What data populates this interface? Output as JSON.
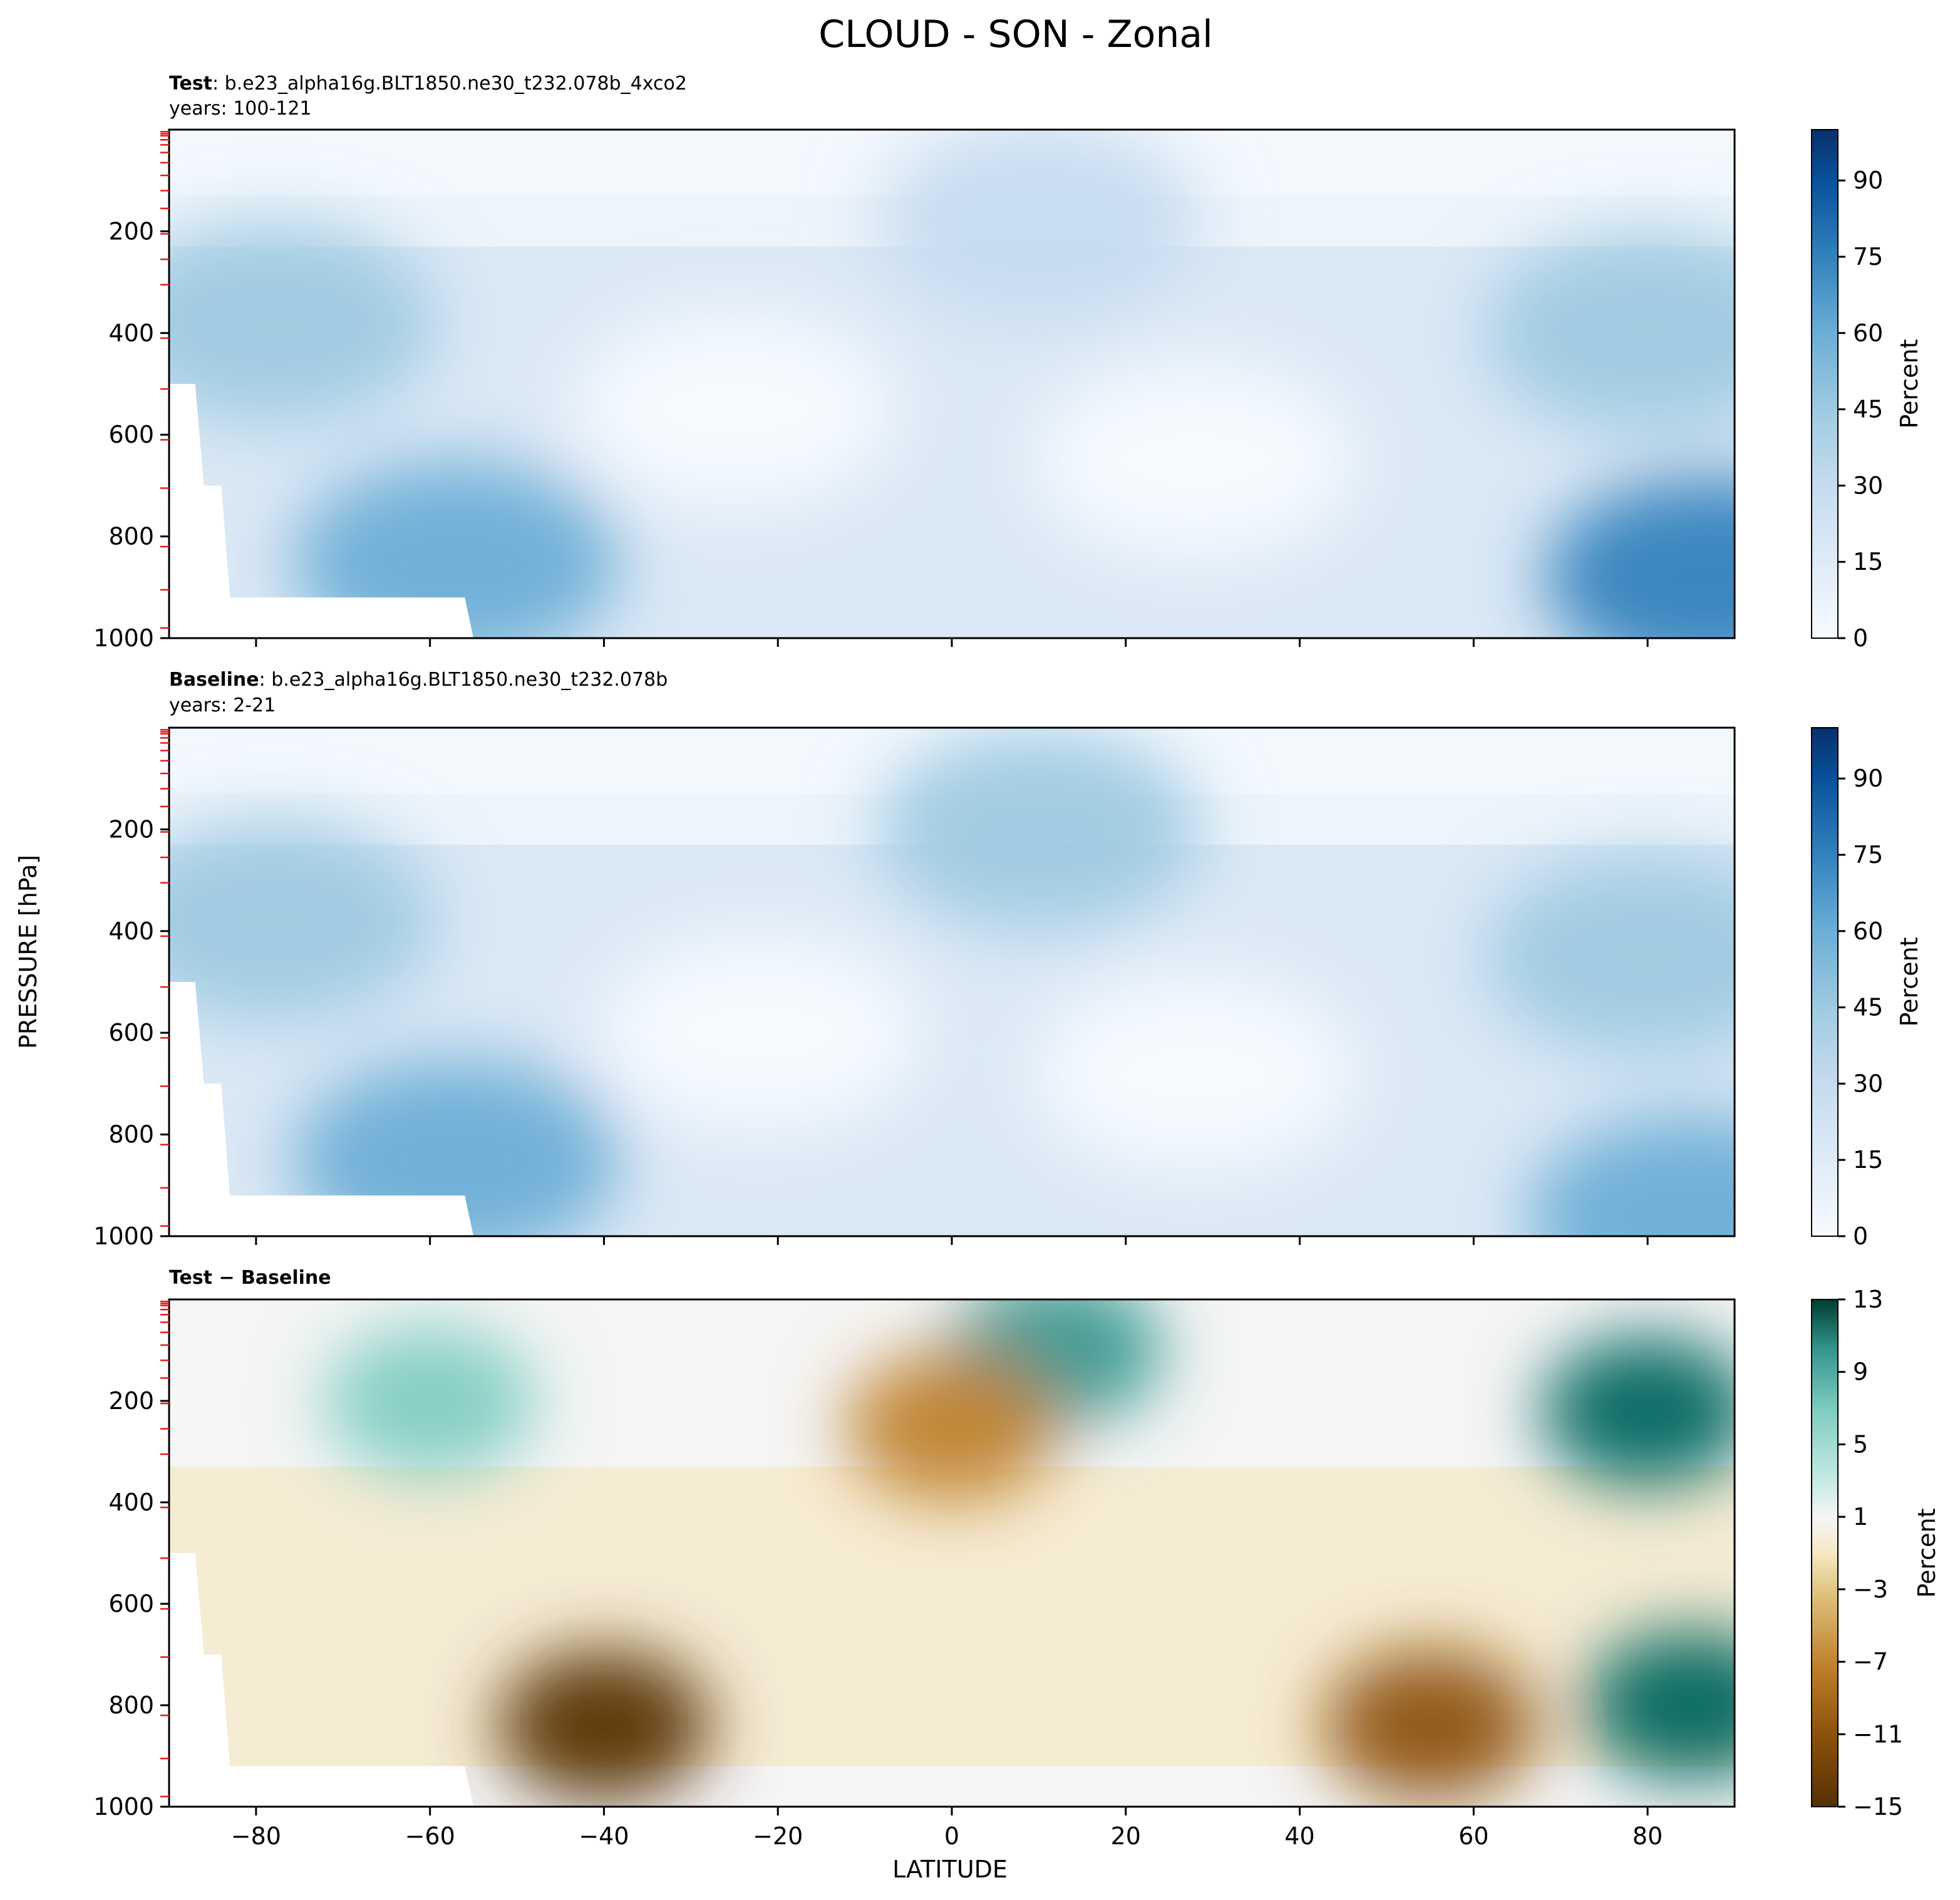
{
  "page": {
    "title": "CLOUD - SON - Zonal"
  },
  "chart_data": [
    {
      "type": "contour",
      "panel": "test",
      "title_bold": "Test",
      "title_rest": ": b.e23_alpha16g.BLT1850.ne30_t232.078b_4xco2",
      "years": "years: 100-121",
      "ylabel": "PRESSURE [hPa]",
      "xlim": [
        -90,
        90
      ],
      "ylim": [
        1000,
        0
      ],
      "yticks": [
        200,
        400,
        600,
        800,
        1000
      ],
      "colorbar": {
        "label": "Percent",
        "ticks": [
          0,
          15,
          30,
          45,
          60,
          75,
          90
        ],
        "range": [
          0,
          100
        ],
        "cmap": "Blues"
      },
      "blobs": [
        {
          "name": "sh-lowcloud-max",
          "lat": -57,
          "p": 850,
          "value": 60
        },
        {
          "name": "nh-lowcloud-max",
          "lat": 87,
          "p": 880,
          "value": 65
        },
        {
          "name": "tropical-cirrus",
          "lat": 10,
          "p": 180,
          "value": 35
        },
        {
          "name": "sh-midlevel",
          "lat": -78,
          "p": 380,
          "value": 45
        },
        {
          "name": "nh-midlevel",
          "lat": 80,
          "p": 400,
          "value": 45
        },
        {
          "name": "subtropical-min-s",
          "lat": -25,
          "p": 550,
          "value": 3
        },
        {
          "name": "subtropical-min-n",
          "lat": 28,
          "p": 650,
          "value": 3
        }
      ]
    },
    {
      "type": "contour",
      "panel": "baseline",
      "title_bold": "Baseline",
      "title_rest": ": b.e23_alpha16g.BLT1850.ne30_t232.078b",
      "years": "years: 2-21",
      "xlim": [
        -90,
        90
      ],
      "ylim": [
        1000,
        0
      ],
      "yticks": [
        200,
        400,
        600,
        800,
        1000
      ],
      "colorbar": {
        "label": "Percent",
        "ticks": [
          0,
          15,
          30,
          45,
          60,
          75,
          90
        ],
        "range": [
          0,
          100
        ],
        "cmap": "Blues"
      },
      "blobs": [
        {
          "name": "sh-lowcloud-max",
          "lat": -57,
          "p": 850,
          "value": 62
        },
        {
          "name": "nh-lowcloud-max",
          "lat": 85,
          "p": 960,
          "value": 60
        },
        {
          "name": "tropical-cirrus",
          "lat": 10,
          "p": 200,
          "value": 38
        },
        {
          "name": "sh-midlevel",
          "lat": -78,
          "p": 380,
          "value": 45
        },
        {
          "name": "nh-midlevel",
          "lat": 80,
          "p": 450,
          "value": 42
        },
        {
          "name": "subtropical-min-s",
          "lat": -22,
          "p": 600,
          "value": 3
        },
        {
          "name": "subtropical-min-n",
          "lat": 28,
          "p": 680,
          "value": 3
        }
      ]
    },
    {
      "type": "contour",
      "panel": "difference",
      "title_bold": "Test − Baseline",
      "xlabel": "LATITUDE",
      "xlim": [
        -90,
        90
      ],
      "xticks": [
        -80,
        -60,
        -40,
        -20,
        0,
        20,
        40,
        60,
        80
      ],
      "ylim": [
        1000,
        0
      ],
      "yticks": [
        200,
        400,
        600,
        800,
        1000
      ],
      "colorbar": {
        "label": "Percent",
        "ticks": [
          -15,
          -11,
          -7,
          -3,
          1,
          5,
          9,
          13
        ],
        "range": [
          -15,
          13
        ],
        "cmap": "BrBG"
      },
      "blobs": [
        {
          "name": "sh-lowcloud-decrease",
          "lat": -40,
          "p": 840,
          "value": -13
        },
        {
          "name": "nh-lowcloud-decrease",
          "lat": 55,
          "p": 840,
          "value": -11
        },
        {
          "name": "nh-upper-increase",
          "lat": 80,
          "p": 220,
          "value": 13
        },
        {
          "name": "arctic-low-increase",
          "lat": 85,
          "p": 800,
          "value": 12
        },
        {
          "name": "tropical-tropopause-increase",
          "lat": 12,
          "p": 100,
          "value": 8
        },
        {
          "name": "sh-upper-increase",
          "lat": -60,
          "p": 200,
          "value": 6
        },
        {
          "name": "tropical-upper-decrease",
          "lat": 0,
          "p": 250,
          "value": -5
        }
      ]
    }
  ]
}
